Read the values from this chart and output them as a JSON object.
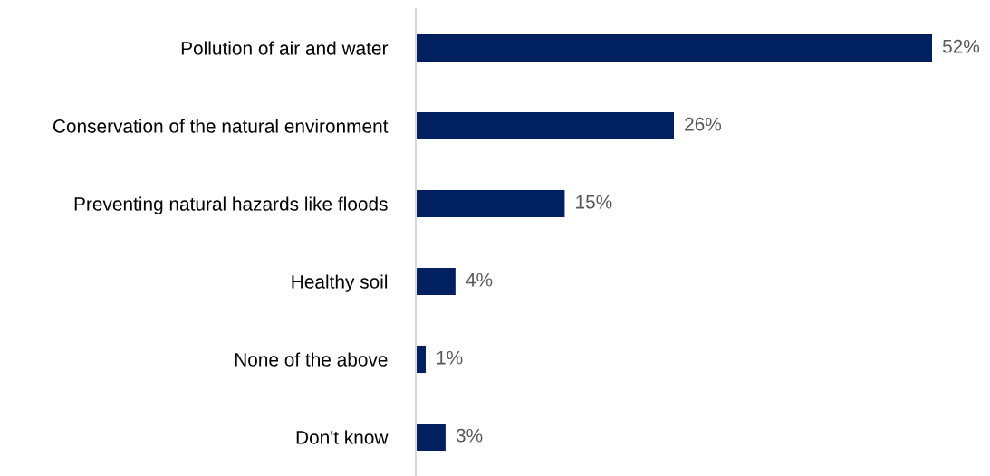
{
  "chart_data": {
    "type": "bar",
    "orientation": "horizontal",
    "categories": [
      "Pollution of air and water",
      "Conservation of the natural environment",
      "Preventing natural hazards like floods",
      "Healthy soil",
      "None of the above",
      "Don't know"
    ],
    "values": [
      52,
      26,
      15,
      4,
      1,
      3
    ],
    "value_labels": [
      "52%",
      "26%",
      "15%",
      "4%",
      "1%",
      "3%"
    ],
    "color": "#002060",
    "grid": false,
    "legend": false
  }
}
